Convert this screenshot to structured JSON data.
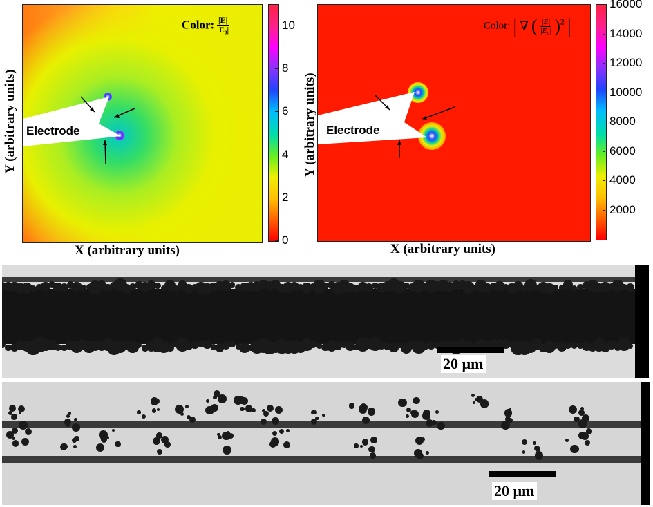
{
  "panel_left": {
    "y_axis_label": "Y (arbitrary units)",
    "x_axis_label": "X (arbitrary units)",
    "electrode_label": "Electrode",
    "color_prefix": "Color:",
    "formula_top": "|E|",
    "formula_bottom": "|E₀|",
    "colorbar_ticks": [
      "10",
      "8",
      "6",
      "4",
      "2",
      "0"
    ],
    "colorbar_values": [
      10,
      8,
      6,
      4,
      2,
      0
    ],
    "colorbar_range": [
      0,
      11
    ]
  },
  "panel_right": {
    "y_axis_label": "Y (arbitrary units)",
    "x_axis_label": "X (arbitrary units)",
    "electrode_label": "Electrode",
    "color_prefix": "Color:",
    "formula_text": "∇",
    "formula_top": "|E|",
    "formula_bottom": "|E₀|",
    "formula_exp": "2",
    "colorbar_ticks": [
      "16000",
      "14000",
      "12000",
      "10000",
      "8000",
      "6000",
      "4000",
      "2000"
    ],
    "colorbar_values": [
      16000,
      14000,
      12000,
      10000,
      8000,
      6000,
      4000,
      2000
    ],
    "colorbar_range": [
      0,
      16000
    ]
  },
  "micrograph_top": {
    "scale_label": "20 µm"
  },
  "micrograph_bottom": {
    "scale_label": "20 µm"
  },
  "colors": {
    "field_low": "#ff2a00",
    "field_mid": "#eeee00",
    "field_high": "#00ddcc",
    "background": "#ffffff"
  }
}
